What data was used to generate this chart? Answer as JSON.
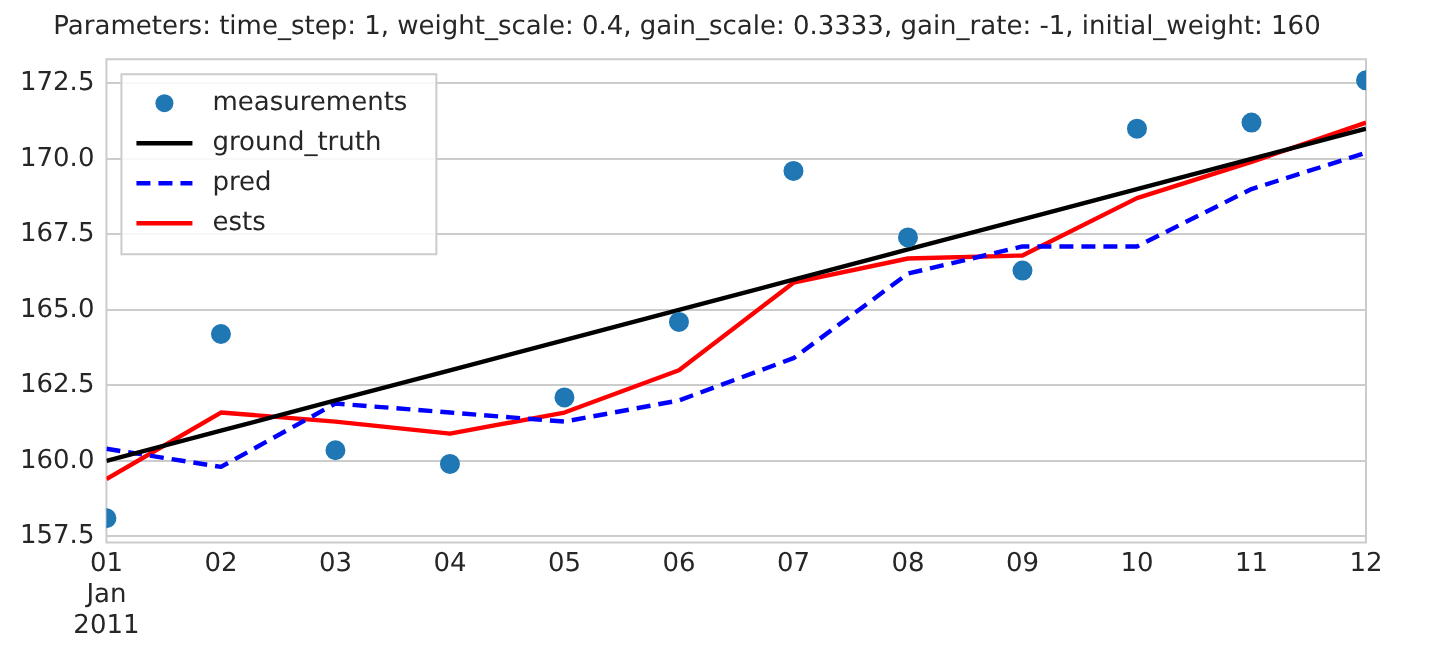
{
  "chart_data": {
    "type": "line",
    "title": "Parameters: time_step: 1, weight_scale: 0.4, gain_scale: 0.3333, gain_rate: -1, initial_weight: 160",
    "x": [
      "2011-01-01",
      "2011-01-02",
      "2011-01-03",
      "2011-01-04",
      "2011-01-05",
      "2011-01-06",
      "2011-01-07",
      "2011-01-08",
      "2011-01-09",
      "2011-01-10",
      "2011-01-11",
      "2011-01-12"
    ],
    "series": [
      {
        "name": "measurements",
        "type": "scatter",
        "marker": "circle",
        "color": "#1f77b4",
        "values": [
          158.1,
          164.2,
          160.35,
          159.9,
          162.1,
          164.6,
          169.6,
          167.4,
          166.3,
          171.0,
          171.2,
          172.6
        ]
      },
      {
        "name": "ground_truth",
        "type": "line",
        "color": "#000000",
        "line_style": "solid",
        "values": [
          160,
          161,
          162,
          163,
          164,
          165,
          166,
          167,
          168,
          169,
          170,
          171
        ]
      },
      {
        "name": "pred",
        "type": "line",
        "color": "#0000ff",
        "line_style": "dashed",
        "values": [
          160.4,
          159.8,
          161.9,
          161.6,
          161.3,
          162.0,
          163.4,
          166.2,
          167.1,
          167.1,
          169.0,
          170.2
        ]
      },
      {
        "name": "ests",
        "type": "line",
        "color": "#ff0000",
        "line_style": "solid",
        "values": [
          159.4,
          161.6,
          161.3,
          160.9,
          161.6,
          163.0,
          165.9,
          166.7,
          166.8,
          168.7,
          169.9,
          171.2
        ]
      }
    ],
    "xlim": [
      "2011-01-01",
      "2011-01-12"
    ],
    "xticks": [
      {
        "value": "2011-01-01",
        "label": "01\nJan\n2011"
      },
      {
        "value": "2011-01-02",
        "label": "02"
      },
      {
        "value": "2011-01-03",
        "label": "03"
      },
      {
        "value": "2011-01-04",
        "label": "04"
      },
      {
        "value": "2011-01-05",
        "label": "05"
      },
      {
        "value": "2011-01-06",
        "label": "06"
      },
      {
        "value": "2011-01-07",
        "label": "07"
      },
      {
        "value": "2011-01-08",
        "label": "08"
      },
      {
        "value": "2011-01-09",
        "label": "09"
      },
      {
        "value": "2011-01-10",
        "label": "10"
      },
      {
        "value": "2011-01-11",
        "label": "11"
      },
      {
        "value": "2011-01-12",
        "label": "12"
      }
    ],
    "ylim": [
      157.3,
      173.3
    ],
    "yticks": [
      157.5,
      {
        "value": 160,
        "label": "160.0"
      },
      162.5,
      {
        "value": 165,
        "label": "165.0"
      },
      167.5,
      {
        "value": 170,
        "label": "170.0"
      },
      172.5
    ],
    "grid": "y",
    "legend": "top left"
  }
}
